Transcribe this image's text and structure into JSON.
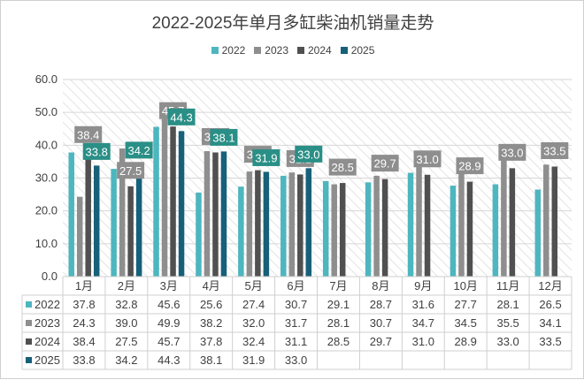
{
  "chart_data": {
    "type": "bar",
    "title": "2022-2025年单月多缸柴油机销量走势",
    "categories": [
      "1月",
      "2月",
      "3月",
      "4月",
      "5月",
      "6月",
      "7月",
      "8月",
      "9月",
      "10月",
      "11月",
      "12月"
    ],
    "series": [
      {
        "name": "2022",
        "color": "#4db6bf",
        "values": [
          37.8,
          32.8,
          45.6,
          25.6,
          27.4,
          30.7,
          29.1,
          28.7,
          31.6,
          27.7,
          28.1,
          26.5
        ]
      },
      {
        "name": "2023",
        "color": "#8e8e8e",
        "values": [
          24.3,
          39.0,
          49.9,
          38.2,
          32.0,
          31.7,
          28.1,
          30.7,
          34.7,
          34.5,
          35.5,
          34.1
        ]
      },
      {
        "name": "2024",
        "color": "#505050",
        "values": [
          38.4,
          27.5,
          45.7,
          37.8,
          32.4,
          31.1,
          28.5,
          29.7,
          31.0,
          28.9,
          33.0,
          33.5
        ]
      },
      {
        "name": "2025",
        "color": "#17607a",
        "values": [
          33.8,
          34.2,
          44.3,
          38.1,
          31.9,
          33.0,
          null,
          null,
          null,
          null,
          null,
          null
        ]
      }
    ],
    "ylim": [
      0,
      60
    ],
    "yticks": [
      "0.0",
      "10.0",
      "20.0",
      "30.0",
      "40.0",
      "50.0",
      "60.0"
    ],
    "data_labels": {
      "2024": [
        "38.4",
        "27.5",
        "45.7",
        "37.8",
        "32.4",
        "31.1",
        "28.5",
        "29.7",
        "31.0",
        "28.9",
        "33.0",
        "33.5"
      ],
      "2025": [
        "33.8",
        "34.2",
        "44.3",
        "38.1",
        "31.9",
        "33.0"
      ]
    },
    "label_colors": {
      "2024": "#8e8e8e",
      "2025": "#2a8f86"
    },
    "grid": true,
    "legend": "top",
    "data_table": true
  }
}
